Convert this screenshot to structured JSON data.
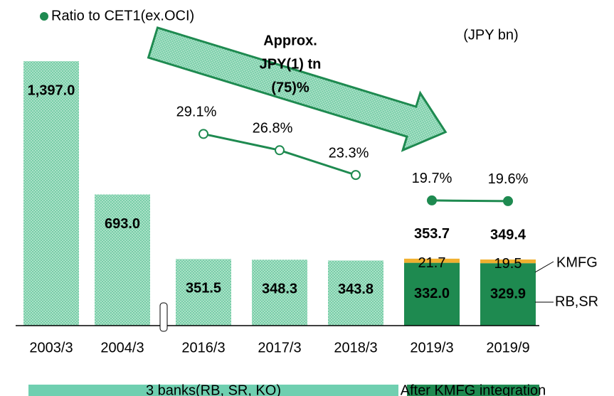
{
  "chart_data": {
    "type": "bar",
    "categories": [
      "2003/3",
      "2004/3",
      "2016/3",
      "2017/3",
      "2018/3",
      "2019/3",
      "2019/9"
    ],
    "ylim": [
      0,
      1420
    ],
    "y2lim": [
      2,
      40
    ],
    "axis_break_after": 1,
    "series": [
      {
        "name": "RB,SR",
        "colors": [
          "#9fdcc0",
          "#9fdcc0",
          "#9fdcc0",
          "#9fdcc0",
          "#9fdcc0",
          "#1e8a50",
          "#1e8a50"
        ],
        "hatched": [
          true,
          true,
          true,
          true,
          true,
          false,
          false
        ],
        "values": [
          1397.0,
          693.0,
          351.5,
          348.3,
          343.8,
          332.0,
          329.9
        ],
        "value_labels": [
          "1,397.0",
          "693.0",
          "351.5",
          "348.3",
          "343.8",
          "332.0",
          "329.9"
        ]
      },
      {
        "name": "KMFG",
        "color": "#f0b030",
        "values": [
          null,
          null,
          null,
          null,
          null,
          21.7,
          19.5
        ]
      },
      {
        "name": "Ratio to CET1(ex.OCI)",
        "type": "line",
        "axis": "y2",
        "color": "#1e8a50",
        "values": [
          null,
          null,
          29.1,
          26.8,
          23.3,
          19.7,
          19.6
        ],
        "value_labels": [
          null,
          null,
          "29.1%",
          "26.8%",
          "23.3%",
          "19.7%",
          "19.6%"
        ]
      }
    ],
    "totals": [
      null,
      null,
      null,
      null,
      null,
      353.7,
      349.4
    ],
    "groups": [
      {
        "label": "3 banks(RB, SR, KO)",
        "from": 0,
        "to": 4,
        "color": "#6fcfb0",
        "marker_filled": false
      },
      {
        "label": "After KMFG integration",
        "from": 5,
        "to": 6,
        "color": "#1e8a50",
        "marker_filled": true
      }
    ],
    "unit_label": "(JPY bn)",
    "annotation": [
      "Approx.",
      "JPY(1) tn",
      "(75)%"
    ]
  }
}
